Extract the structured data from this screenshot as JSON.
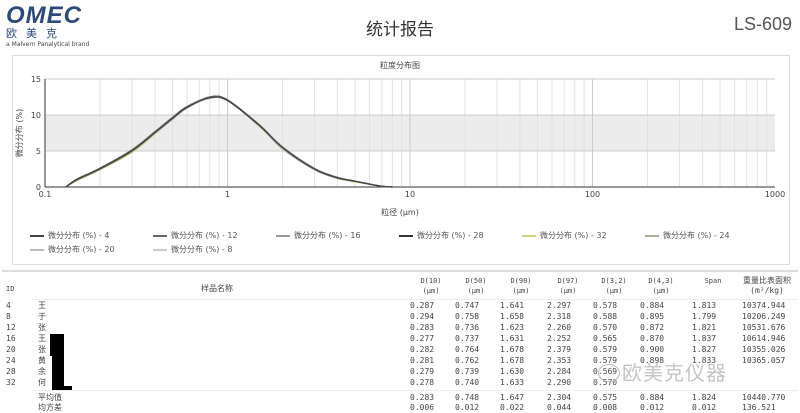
{
  "header": {
    "logo_text": "OMEC",
    "logo_cn": "欧美克",
    "brand_line": "a Malvern Panalytical brand",
    "title": "统计报告",
    "model": "LS-609"
  },
  "chart_data": {
    "type": "line",
    "title": "粒度分布图",
    "xlabel": "粒径 (μm)",
    "ylabel": "微分分布 (%)",
    "x_scale": "log",
    "xlim": [
      0.1,
      1000
    ],
    "ylim": [
      0,
      15
    ],
    "x_ticks": [
      "0.1",
      "1",
      "10",
      "100",
      "1000"
    ],
    "y_ticks": [
      "0",
      "5",
      "10",
      "15"
    ],
    "grid": true,
    "legend_position": "bottom",
    "x": [
      0.13,
      0.15,
      0.2,
      0.3,
      0.4,
      0.5,
      0.6,
      0.8,
      1,
      1.5,
      2,
      3,
      4,
      5,
      6,
      7,
      8
    ],
    "series": [
      {
        "name": "微分分布 (%) - 4",
        "color": "#444444",
        "values": [
          0,
          1.1,
          2.6,
          5.1,
          7.6,
          9.6,
          11.1,
          12.4,
          12.0,
          8.5,
          5.5,
          2.5,
          1.3,
          0.8,
          0.4,
          0.1,
          0
        ]
      },
      {
        "name": "微分分布 (%) - 12",
        "color": "#666666",
        "values": [
          0,
          1.0,
          2.5,
          5.0,
          7.5,
          9.5,
          11.0,
          12.5,
          12.1,
          8.6,
          5.5,
          2.5,
          1.3,
          0.8,
          0.4,
          0.1,
          0
        ]
      },
      {
        "name": "微分分布 (%) - 16",
        "color": "#999999",
        "values": [
          0,
          1.1,
          2.6,
          5.2,
          7.7,
          9.7,
          11.2,
          12.5,
          12.0,
          8.5,
          5.4,
          2.4,
          1.2,
          0.8,
          0.4,
          0.1,
          0
        ]
      },
      {
        "name": "微分分布 (%) - 28",
        "color": "#333333",
        "values": [
          0,
          1.0,
          2.5,
          5.0,
          7.6,
          9.6,
          11.1,
          12.5,
          12.1,
          8.5,
          5.5,
          2.5,
          1.3,
          0.8,
          0.4,
          0.1,
          0
        ]
      },
      {
        "name": "微分分布 (%) - 32",
        "color": "#c8d67a",
        "values": [
          0,
          0.9,
          2.4,
          4.8,
          7.4,
          9.6,
          11.2,
          12.5,
          12.1,
          8.4,
          5.4,
          2.4,
          1.2,
          0.7,
          0.4,
          0.1,
          0
        ]
      },
      {
        "name": "微分分布 (%) - 24",
        "color": "#a9b59a",
        "values": [
          0,
          1.0,
          2.4,
          4.9,
          7.4,
          9.5,
          11.1,
          12.4,
          12.0,
          8.4,
          5.3,
          2.4,
          1.2,
          0.8,
          0.4,
          0.1,
          0
        ]
      },
      {
        "name": "微分分布 (%) - 20",
        "color": "#bbbbbb",
        "values": [
          0,
          1.0,
          2.5,
          4.9,
          7.4,
          9.4,
          11.0,
          12.3,
          12.0,
          8.6,
          5.6,
          2.6,
          1.3,
          0.8,
          0.4,
          0.1,
          0
        ]
      },
      {
        "name": "微分分布 (%) - 8",
        "color": "#cccccc",
        "values": [
          0,
          1.0,
          2.4,
          4.9,
          7.5,
          9.5,
          11.0,
          12.4,
          12.1,
          8.6,
          5.6,
          2.6,
          1.4,
          0.8,
          0.4,
          0.1,
          0
        ]
      }
    ]
  },
  "table": {
    "headers": [
      "ID",
      "样品名称",
      "D(10)\n(μm)",
      "D(50)\n(μm)",
      "D(90)\n(μm)",
      "D(97)\n(μm)",
      "D(3,2)\n(μm)",
      "D(4,3)\n(μm)",
      "Span",
      "重量比表面积\n(m²/kg)"
    ],
    "rows": [
      [
        "4",
        "王",
        "0.287",
        "0.747",
        "1.641",
        "2.297",
        "0.578",
        "0.884",
        "1.813",
        "10374.944"
      ],
      [
        "8",
        "于",
        "0.294",
        "0.758",
        "1.658",
        "2.318",
        "0.588",
        "0.895",
        "1.799",
        "10206.249"
      ],
      [
        "12",
        "张",
        "0.283",
        "0.736",
        "1.623",
        "2.260",
        "0.570",
        "0.872",
        "1.821",
        "10531.676"
      ],
      [
        "16",
        "王",
        "0.277",
        "0.737",
        "1.631",
        "2.252",
        "0.565",
        "0.870",
        "1.837",
        "10614.946"
      ],
      [
        "20",
        "张",
        "0.282",
        "0.764",
        "1.678",
        "2.379",
        "0.579",
        "0.900",
        "1.827",
        "10355.026"
      ],
      [
        "24",
        "黄",
        "0.281",
        "0.762",
        "1.678",
        "2.353",
        "0.579",
        "0.898",
        "1.833",
        "10365.057"
      ],
      [
        "28",
        "余",
        "0.279",
        "0.739",
        "1.630",
        "2.284",
        "0.569",
        "",
        "",
        ""
      ],
      [
        "32",
        "何",
        "0.278",
        "0.740",
        "1.633",
        "2.290",
        "0.570",
        "",
        "",
        ""
      ]
    ],
    "summary": [
      [
        "",
        "平均值",
        "0.283",
        "0.748",
        "1.647",
        "2.304",
        "0.575",
        "0.884",
        "1.824",
        "10440.770"
      ],
      [
        "",
        "均方差",
        "0.006",
        "0.012",
        "0.022",
        "0.044",
        "0.008",
        "0.012",
        "0.012",
        "136.521"
      ]
    ]
  },
  "watermark": "欧美克仪器"
}
